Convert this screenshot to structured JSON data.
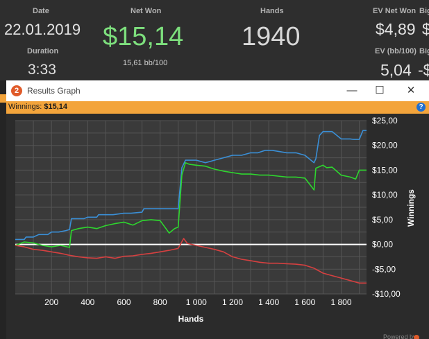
{
  "stats": {
    "date_label": "Date",
    "date_value": "22.01.2019",
    "duration_label": "Duration",
    "duration_value": "3:33",
    "net_won_label": "Net Won",
    "net_won_value": "$15,14",
    "net_won_sub": "15,61 bb/100",
    "hands_label": "Hands",
    "hands_value": "1940",
    "ev_net_won_label": "EV Net Won",
    "ev_net_won_value": "$4,89",
    "ev_bb_label": "EV (bb/100)",
    "ev_bb_value": "5,04",
    "cut_label": "Big",
    "cut_value_1": "$",
    "cut_value_2": "-$",
    "cut_label_2": "Big"
  },
  "window": {
    "title": "Results Graph",
    "minimize_icon": "minimize-icon",
    "maximize_icon": "maximize-icon",
    "close_icon": "close-icon",
    "winnings_label": "Winnings:",
    "winnings_value": "$15,14"
  },
  "colors": {
    "net_won_green": "#7ddf7d",
    "blue_series": "#3a8fd6",
    "green_series": "#2ed62e",
    "red_series": "#d64040",
    "zero_line": "#ffffff",
    "accent_orange": "#f3a43b"
  },
  "chart_data": {
    "type": "line",
    "xlabel": "Hands",
    "ylabel": "Winnings",
    "xlim": [
      0,
      1940
    ],
    "ylim": [
      -10,
      25
    ],
    "xticks": [
      200,
      400,
      600,
      800,
      1000,
      1200,
      1400,
      1600,
      1800
    ],
    "xtick_labels": [
      "200",
      "400",
      "600",
      "800",
      "1 000",
      "1 200",
      "1 400",
      "1 600",
      "1 800"
    ],
    "yticks": [
      25,
      20,
      15,
      10,
      5,
      0,
      -5,
      -10
    ],
    "ytick_labels": [
      "$25,00",
      "$20,00",
      "$15,00",
      "$10,00",
      "$5,00",
      "$0,00",
      "-$5,00",
      "-$10,00"
    ],
    "series": [
      {
        "x": [
          0,
          50,
          60,
          100,
          130,
          140,
          180,
          200,
          240,
          280,
          300,
          310,
          380,
          400,
          450,
          460,
          520,
          540,
          600,
          640,
          700,
          710,
          760,
          800,
          880,
          900,
          920,
          940,
          960,
          980,
          1000,
          1050,
          1080,
          1100,
          1150,
          1200,
          1250,
          1300,
          1340,
          1380,
          1420,
          1500,
          1550,
          1600,
          1650,
          1660,
          1680,
          1700,
          1720,
          1750,
          1800,
          1850,
          1870,
          1900,
          1920,
          1940
        ],
        "values": [
          1,
          1,
          1.5,
          1.5,
          2,
          2,
          2,
          2.5,
          2.5,
          2.8,
          3,
          5.2,
          5.2,
          5.5,
          5.5,
          6,
          6,
          6,
          6.3,
          6.3,
          6.5,
          7.2,
          7.2,
          7.2,
          7.2,
          7.2,
          15.5,
          17,
          17,
          17,
          17,
          16.5,
          16.8,
          17,
          17.5,
          18,
          18,
          18.5,
          18.5,
          19,
          19,
          18.5,
          18.5,
          18,
          16.5,
          17.3,
          22,
          22.8,
          22.8,
          22.8,
          21.3,
          21.3,
          21.2,
          21.2,
          23,
          23
        ]
      },
      {
        "x": [
          0,
          50,
          100,
          150,
          200,
          250,
          300,
          310,
          350,
          400,
          450,
          500,
          550,
          600,
          650,
          700,
          750,
          800,
          850,
          880,
          900,
          920,
          940,
          960,
          1000,
          1050,
          1100,
          1150,
          1200,
          1250,
          1300,
          1350,
          1400,
          1450,
          1500,
          1550,
          1600,
          1650,
          1660,
          1700,
          1720,
          1750,
          1800,
          1850,
          1880,
          1900,
          1940
        ],
        "values": [
          -0.2,
          0.5,
          0.3,
          -0.2,
          -0.5,
          -0.2,
          -0.6,
          2.8,
          3.2,
          3.5,
          3.2,
          3.8,
          4.2,
          4.5,
          3.9,
          4.8,
          5,
          4.8,
          2.3,
          3.2,
          3.5,
          14,
          16.5,
          16.2,
          16,
          15.8,
          15.2,
          14.8,
          14.5,
          14.2,
          14.2,
          14,
          14,
          13.8,
          13.6,
          13.6,
          13.4,
          11,
          15.4,
          16,
          15.5,
          15.6,
          14,
          13.6,
          13.2,
          15,
          15
        ]
      },
      {
        "x": [
          0,
          50,
          100,
          150,
          200,
          250,
          300,
          350,
          400,
          450,
          500,
          550,
          600,
          650,
          700,
          750,
          800,
          850,
          900,
          930,
          950,
          1000,
          1050,
          1100,
          1150,
          1200,
          1250,
          1300,
          1350,
          1400,
          1450,
          1500,
          1550,
          1600,
          1650,
          1700,
          1750,
          1800,
          1850,
          1880,
          1900,
          1940
        ],
        "values": [
          -0.2,
          -0.5,
          -1,
          -1.2,
          -1.5,
          -1.8,
          -2.2,
          -2.5,
          -2.7,
          -2.8,
          -2.5,
          -2.8,
          -2.4,
          -2.3,
          -2,
          -1.8,
          -1.5,
          -1.2,
          -0.8,
          1.2,
          0.2,
          -0.2,
          -0.6,
          -1,
          -1.5,
          -2.5,
          -3,
          -3.3,
          -3.6,
          -3.8,
          -3.8,
          -3.9,
          -4,
          -4.2,
          -4.8,
          -5.8,
          -6.3,
          -6.8,
          -7.3,
          -7.6,
          -7.8,
          -7.8
        ]
      }
    ]
  }
}
